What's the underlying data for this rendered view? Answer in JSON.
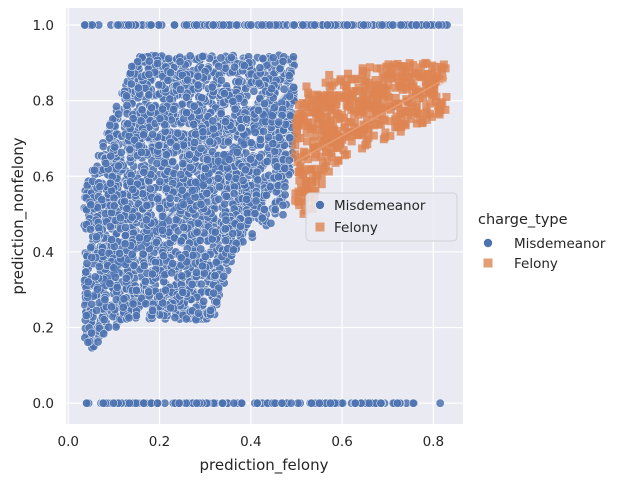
{
  "chart_data": {
    "type": "scatter",
    "title": "",
    "xlabel": "prediction_felony",
    "ylabel": "prediction_nonfelony",
    "xlim": [
      -0.005,
      0.865
    ],
    "ylim": [
      -0.055,
      1.045
    ],
    "xticks": [
      "0.0",
      "0.2",
      "0.4",
      "0.6",
      "0.8"
    ],
    "xtick_values": [
      0.0,
      0.2,
      0.4,
      0.6,
      0.8
    ],
    "yticks": [
      "0.0",
      "0.2",
      "0.4",
      "0.6",
      "0.8",
      "1.0"
    ],
    "ytick_values": [
      0.0,
      0.2,
      0.4,
      0.6,
      0.8,
      1.0
    ],
    "grid": true,
    "background": "#eaeaf2",
    "legend_title": "charge_type",
    "series": [
      {
        "name": "Misdemeanor",
        "marker": "circle",
        "color": "#4c72b0",
        "regression": {
          "x": [
            0.04,
            0.49
          ],
          "y": [
            0.27,
            0.83
          ]
        },
        "point_summary": [
          {
            "x": 0.04,
            "y": 0.11
          },
          {
            "x": 0.05,
            "y": 0.2
          },
          {
            "x": 0.08,
            "y": 0.35
          },
          {
            "x": 0.1,
            "y": 0.55
          },
          {
            "x": 0.1,
            "y": 0.9
          },
          {
            "x": 0.2,
            "y": 0.88
          },
          {
            "x": 0.3,
            "y": 0.78
          },
          {
            "x": 0.4,
            "y": 0.85
          },
          {
            "x": 0.48,
            "y": 0.8
          },
          {
            "x": 0.45,
            "y": 0.45
          },
          {
            "x": 0.3,
            "y": 0.35
          },
          {
            "x": 0.2,
            "y": 0.25
          },
          {
            "x": 0.15,
            "y": 0.22
          },
          {
            "x": 0.25,
            "y": 0.62
          },
          {
            "x": 0.18,
            "y": 0.7
          }
        ],
        "band_y1_x": [
          0.035,
          0.83
        ],
        "band_y0_x": [
          0.035,
          0.815
        ]
      },
      {
        "name": "Felony",
        "marker": "square",
        "color": "#dd8452",
        "regression": {
          "x": [
            0.5,
            0.83
          ],
          "y": [
            0.64,
            0.86
          ]
        },
        "point_summary": [
          {
            "x": 0.5,
            "y": 0.55
          },
          {
            "x": 0.52,
            "y": 0.75
          },
          {
            "x": 0.55,
            "y": 0.85
          },
          {
            "x": 0.6,
            "y": 0.7
          },
          {
            "x": 0.65,
            "y": 0.8
          },
          {
            "x": 0.7,
            "y": 0.78
          },
          {
            "x": 0.75,
            "y": 0.85
          },
          {
            "x": 0.8,
            "y": 0.88
          },
          {
            "x": 0.82,
            "y": 0.87
          },
          {
            "x": 0.78,
            "y": 0.68
          },
          {
            "x": 0.57,
            "y": 0.6
          },
          {
            "x": 0.62,
            "y": 0.65
          }
        ]
      }
    ],
    "legend_inner": {
      "placement": "center-right inside plot",
      "entries": [
        "Misdemeanor",
        "Felony"
      ]
    },
    "legend_outer": {
      "placement": "right outside plot",
      "title": "charge_type",
      "entries": [
        "Misdemeanor",
        "Felony"
      ]
    }
  }
}
